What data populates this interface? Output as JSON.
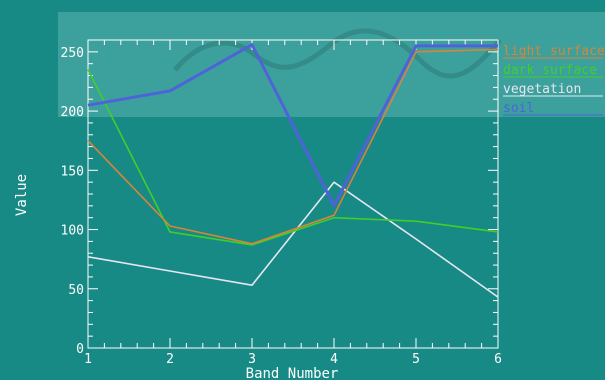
{
  "chart_data": {
    "type": "line",
    "xlabel": "Band Number",
    "ylabel": "Value",
    "x": [
      1,
      2,
      3,
      4,
      5,
      6
    ],
    "xlim": [
      1,
      6
    ],
    "ylim": [
      0,
      260
    ],
    "xticks": [
      "1",
      "2",
      "3",
      "4",
      "5",
      "6"
    ],
    "yticks": [
      "0",
      "50",
      "100",
      "150",
      "200",
      "250"
    ],
    "grid": false,
    "legend_position": "right-top",
    "series": [
      {
        "name": "light surface",
        "color": "#d9843a",
        "values": [
          175,
          103,
          88,
          112,
          250,
          252
        ]
      },
      {
        "name": "dark surface",
        "color": "#3fcf2a",
        "values": [
          235,
          98,
          87,
          110,
          107,
          98
        ]
      },
      {
        "name": "vegetation",
        "color": "#e6e6f0",
        "values": [
          77,
          65,
          53,
          140,
          92,
          43
        ]
      },
      {
        "name": "soil",
        "color": "#4f63d8",
        "values": [
          205,
          217,
          256,
          120,
          255,
          255
        ]
      }
    ]
  },
  "colors": {
    "background": "#178a86",
    "axes": "#ffffff",
    "watermark_band": "#4aa8a4"
  }
}
